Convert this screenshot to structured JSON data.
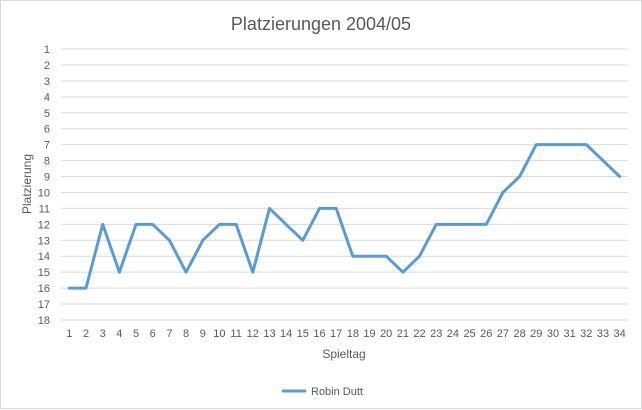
{
  "chart_data": {
    "type": "line",
    "title": "Platzierungen 2004/05",
    "xlabel": "Spieltag",
    "ylabel": "Platzierung",
    "x": [
      1,
      2,
      3,
      4,
      5,
      6,
      7,
      8,
      9,
      10,
      11,
      12,
      13,
      14,
      15,
      16,
      17,
      18,
      19,
      20,
      21,
      22,
      23,
      24,
      25,
      26,
      27,
      28,
      29,
      30,
      31,
      32,
      33,
      34
    ],
    "y_ticks": [
      1,
      2,
      3,
      4,
      5,
      6,
      7,
      8,
      9,
      10,
      11,
      12,
      13,
      14,
      15,
      16,
      17,
      18
    ],
    "ylim": [
      1,
      18
    ],
    "y_reversed": true,
    "grid": true,
    "legend_position": "bottom",
    "series": [
      {
        "name": "Robin Dutt",
        "color": "#5b9bd5",
        "values": [
          16,
          16,
          12,
          15,
          12,
          12,
          13,
          15,
          13,
          12,
          12,
          15,
          11,
          12,
          13,
          11,
          11,
          14,
          14,
          14,
          15,
          14,
          12,
          12,
          12,
          12,
          10,
          9,
          7,
          7,
          7,
          7,
          8,
          9
        ]
      }
    ]
  }
}
